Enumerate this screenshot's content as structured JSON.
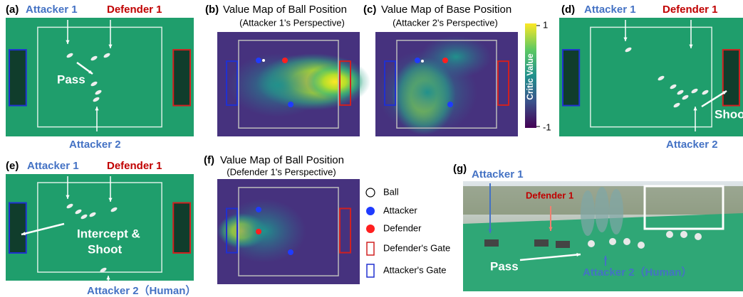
{
  "panel_a": {
    "label": "(a)",
    "attacker_1": "Attacker 1",
    "defender_1": "Defender 1",
    "action": "Pass",
    "attacker_2": "Attacker 2"
  },
  "panel_b": {
    "label": "(b)",
    "title": "Value Map of Ball Position",
    "subtitle": "(Attacker 1's Perspective)"
  },
  "panel_c": {
    "label": "(c)",
    "title": "Value Map of Base Position",
    "subtitle": "(Attacker 2's Perspective)"
  },
  "colorbar": {
    "label": "Critic Value",
    "max": 1,
    "min": -1
  },
  "panel_d": {
    "label": "(d)",
    "attacker_1": "Attacker 1",
    "defender_1": "Defender 1",
    "action": "Shoot",
    "attacker_2": "Attacker 2"
  },
  "panel_e": {
    "label": "(e)",
    "attacker_1": "Attacker 1",
    "defender_1": "Defender 1",
    "action_line_1": "Intercept &",
    "action_line_2": "Shoot",
    "attacker_2": "Attacker 2（Human）"
  },
  "panel_f": {
    "label": "(f)",
    "title": "Value Map of Ball Position",
    "subtitle": "(Defender 1's Perspective)"
  },
  "legend": {
    "ball": "Ball",
    "attacker": "Attacker",
    "defender": "Defender",
    "defenders_gate": "Defender's Gate",
    "attackers_gate": "Attacker's Gate"
  },
  "panel_g": {
    "label": "(g)",
    "attacker_1": "Attacker 1",
    "defender_1": "Defender 1",
    "action": "Pass",
    "attacker_2": "Attacker 2（Human）"
  }
}
